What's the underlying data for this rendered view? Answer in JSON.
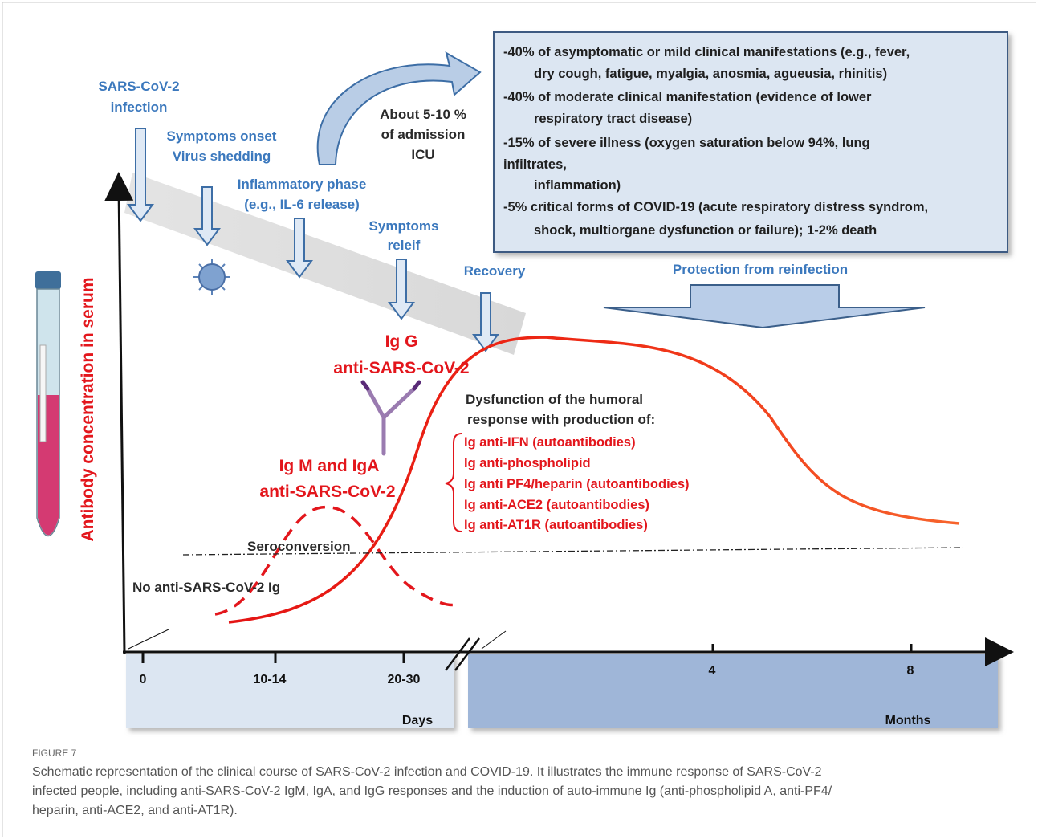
{
  "events": [
    [
      "SARS-CoV-2",
      "infection"
    ],
    [
      "Symptoms onset",
      "Virus shedding"
    ],
    [
      "Inflammatory phase",
      "(e.g., IL-6 release)"
    ],
    [
      "Symptoms",
      "releif"
    ],
    [
      "Recovery"
    ]
  ],
  "icu_note": [
    "About 5-10 %",
    "of admission",
    "ICU"
  ],
  "severity_box": [
    "-40%  of asymptomatic  or mild clinical manifestations (e.g., fever,",
    "dry cough, fatigue, myalgia, anosmia, agueusia, rhinitis)",
    "-40% of moderate clinical manifestation (evidence of lower",
    "respiratory tract disease)",
    "-15% of severe illness (oxygen saturation below 94%, lung",
    "infiltrates,",
    "inflammation)",
    "-5% critical forms of COVID-19 (acute respiratory distress syndrom,",
    "shock, multiorgane dysfunction or failure); 1-2% death"
  ],
  "protection": "Protection from reinfection",
  "igg_label": [
    "Ig G",
    "anti-SARS-CoV-2"
  ],
  "igm_iga_label": [
    "Ig M and IgA",
    "anti-SARS-CoV-2"
  ],
  "dysfunction": {
    "heading": [
      "Dysfunction of the humoral",
      "response with production of:"
    ],
    "items": [
      "Ig anti-IFN (autoantibodies)",
      "Ig anti-phospholipid",
      "Ig anti PF4/heparin  (autoantibodies)",
      "Ig anti-ACE2 (autoantibodies)",
      "Ig anti-AT1R (autoantibodies)"
    ]
  },
  "seroconversion": "Seroconversion",
  "no_ig": "No anti-SARS-CoV-2 Ig",
  "y_axis_label": "Antibody concentration in serum",
  "x_axis": {
    "days_ticks": [
      "0",
      "10-14",
      "20-30"
    ],
    "days_unit": "Days",
    "months_ticks": [
      "4",
      "8"
    ],
    "months_unit": "Months"
  },
  "caption": {
    "label": "FIGURE 7",
    "lines": [
      "Schematic representation of the clinical course of SARS-CoV-2 infection and COVID-19. It illustrates the immune response of SARS-CoV-2",
      "infected people, including anti-SARS-CoV-2 IgM, IgA, and IgG responses and the induction of auto-immune Ig (anti-phospholipid A, anti-PF4/",
      "heparin, anti-ACE2, and anti-AT1R)."
    ]
  }
}
